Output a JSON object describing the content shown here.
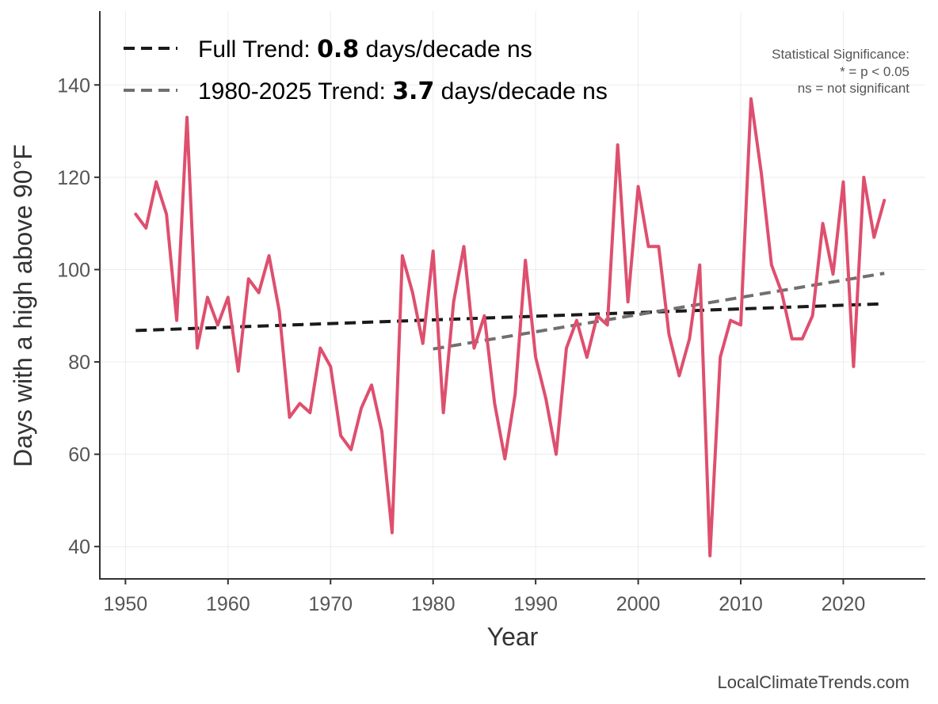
{
  "chart_data": {
    "type": "line",
    "xlabel": "Year",
    "ylabel": "Days with a high above 90°F",
    "xlim": [
      1947.5,
      2028
    ],
    "ylim": [
      33,
      156
    ],
    "x_ticks": [
      1950,
      1960,
      1970,
      1980,
      1990,
      2000,
      2010,
      2020
    ],
    "y_ticks": [
      40,
      60,
      80,
      100,
      120,
      140
    ],
    "grid": true,
    "series": [
      {
        "color": "#de4f6e",
        "x": [
          1951,
          1952,
          1953,
          1954,
          1955,
          1956,
          1957,
          1958,
          1959,
          1960,
          1961,
          1962,
          1963,
          1964,
          1965,
          1966,
          1967,
          1968,
          1969,
          1970,
          1971,
          1972,
          1973,
          1974,
          1975,
          1976,
          1977,
          1978,
          1979,
          1980,
          1981,
          1982,
          1983,
          1984,
          1985,
          1986,
          1987,
          1988,
          1989,
          1990,
          1991,
          1992,
          1993,
          1994,
          1995,
          1996,
          1997,
          1998,
          1999,
          2000,
          2001,
          2002,
          2003,
          2004,
          2005,
          2006,
          2007,
          2008,
          2009,
          2010,
          2011,
          2012,
          2013,
          2014,
          2015,
          2016,
          2017,
          2018,
          2019,
          2020,
          2021,
          2022,
          2023,
          2024
        ],
        "values": [
          112,
          109,
          119,
          112,
          89,
          133,
          83,
          94,
          88,
          94,
          78,
          98,
          95,
          103,
          91,
          68,
          71,
          69,
          83,
          79,
          64,
          61,
          70,
          75,
          65,
          43,
          103,
          95,
          84,
          104,
          69,
          93,
          105,
          83,
          90,
          71,
          59,
          73,
          102,
          81,
          72,
          60,
          83,
          89,
          81,
          90,
          88,
          127,
          93,
          118,
          105,
          105,
          86,
          77,
          85,
          101,
          38,
          81,
          89,
          88,
          137,
          121,
          101,
          95,
          85,
          85,
          90,
          110,
          99,
          119,
          79,
          120,
          107,
          115
        ]
      }
    ],
    "trends": [
      {
        "name": "Full Trend",
        "color": "#1a1a1a",
        "x": [
          1951,
          2024
        ],
        "values": [
          86.8,
          92.6
        ]
      },
      {
        "name": "1980-2025 Trend",
        "color": "#707070",
        "x": [
          1980,
          2024
        ],
        "values": [
          82.8,
          99.2
        ]
      }
    ],
    "legend": {
      "placement": "top-left",
      "entries": [
        {
          "prefix": "Full Trend: ",
          "value": "0.8",
          "suffix": " days/decade ns",
          "color": "#1a1a1a"
        },
        {
          "prefix": "1980-2025 Trend: ",
          "value": "3.7",
          "suffix": " days/decade ns",
          "color": "#707070"
        }
      ]
    },
    "annotation": [
      "Statistical Significance:",
      "* = p < 0.05",
      "ns = not significant"
    ],
    "footer": "LocalClimateTrends.com"
  }
}
